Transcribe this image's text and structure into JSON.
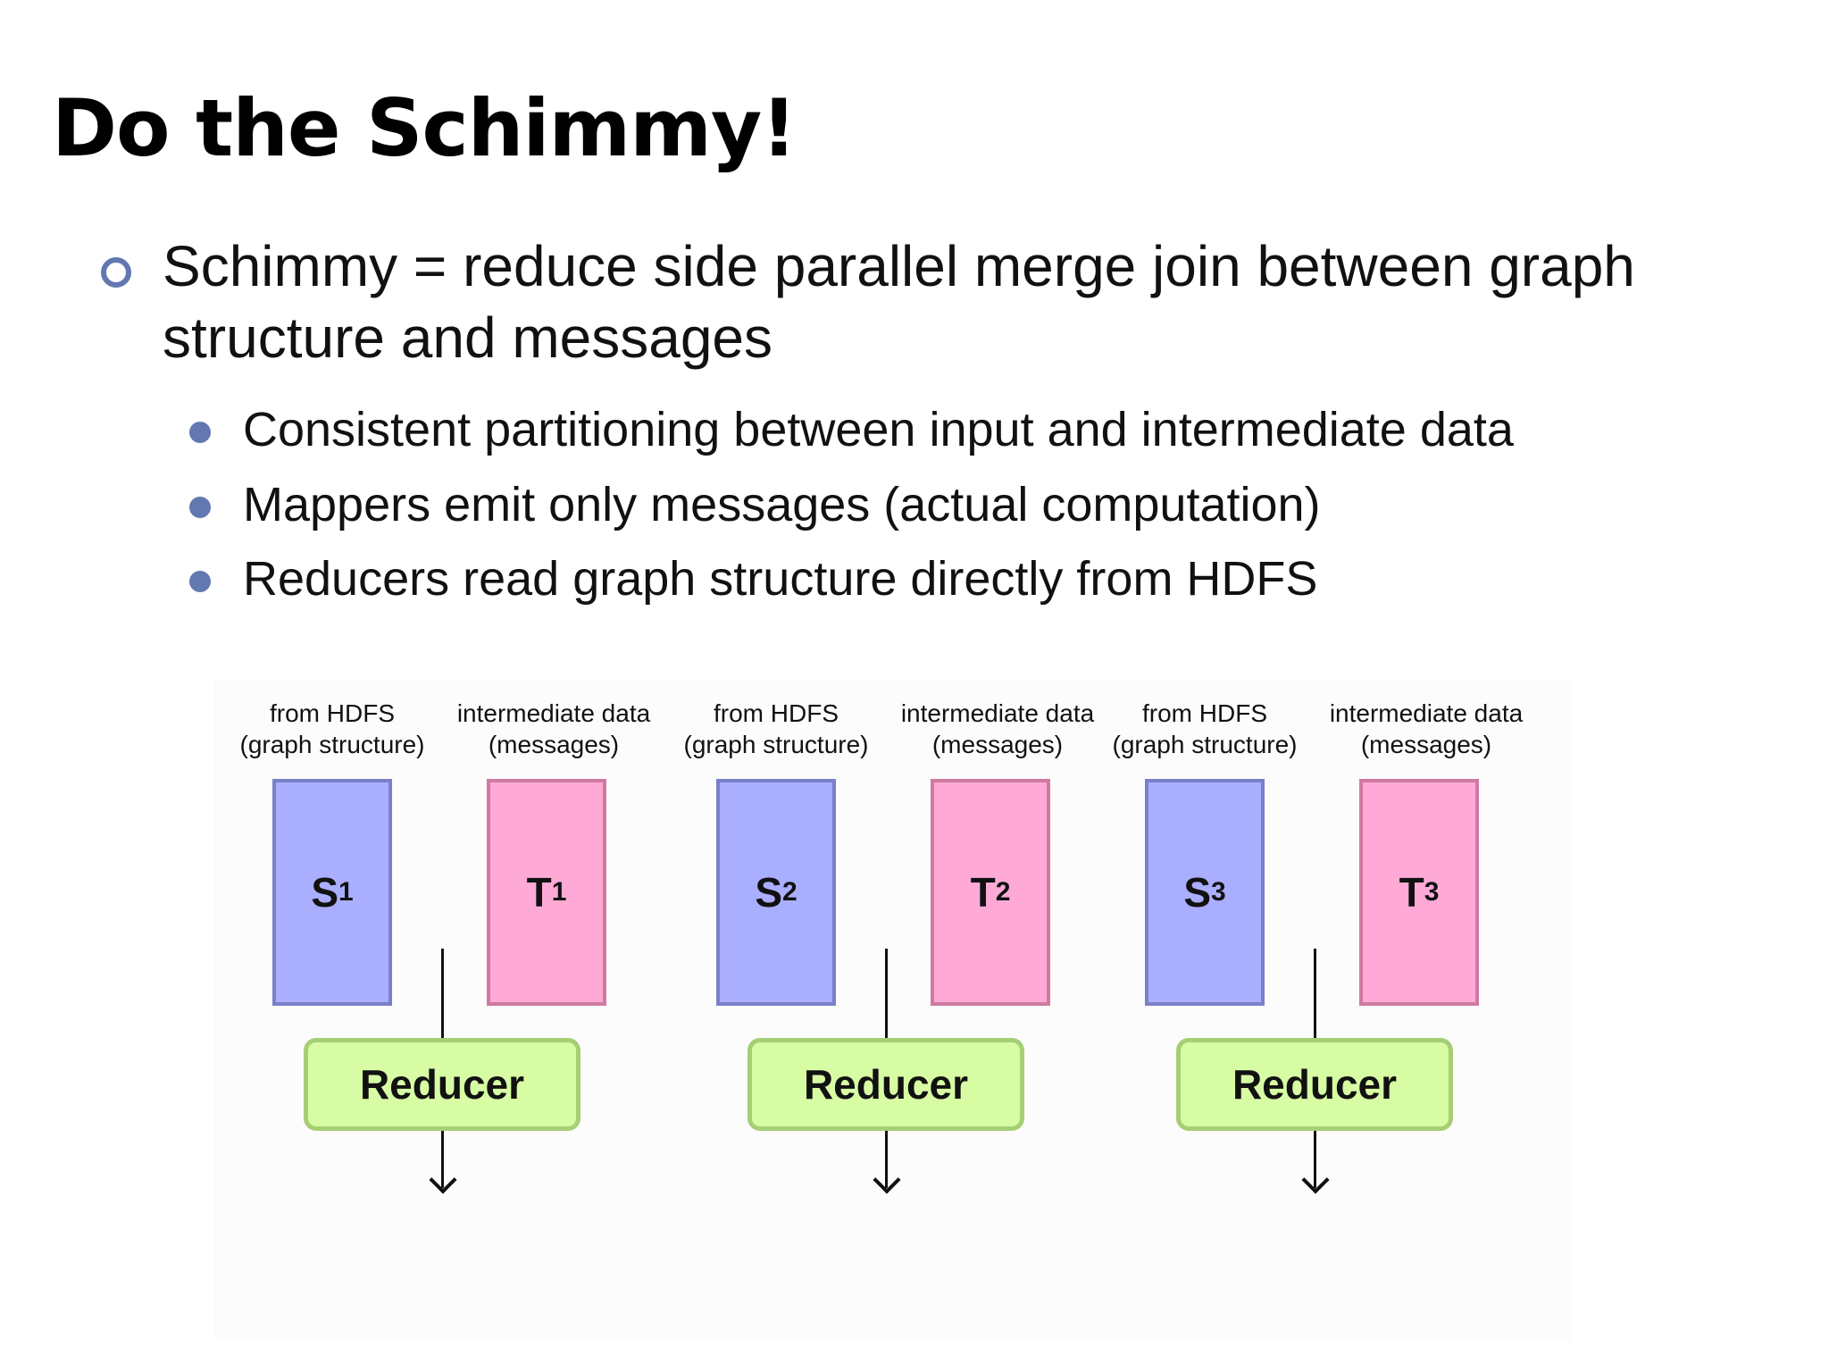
{
  "slide": {
    "title": "Do the Schimmy!",
    "main_bullet": "Schimmy = reduce side parallel merge join between graph structure and messages",
    "sub_bullets": [
      "Consistent partitioning between input and intermediate data",
      "Mappers emit only messages (actual computation)",
      "Reducers read graph structure directly from HDFS"
    ]
  },
  "diagram": {
    "partitions": [
      {
        "graph_label": [
          "from HDFS",
          "(graph structure)"
        ],
        "graph_block": {
          "letter": "S",
          "index": "1"
        },
        "message_label": [
          "intermediate data",
          "(messages)"
        ],
        "message_block": {
          "letter": "T",
          "index": "1"
        },
        "reducer_label": "Reducer"
      },
      {
        "graph_label": [
          "from HDFS",
          "(graph structure)"
        ],
        "graph_block": {
          "letter": "S",
          "index": "2"
        },
        "message_label": [
          "intermediate data",
          "(messages)"
        ],
        "message_block": {
          "letter": "T",
          "index": "2"
        },
        "reducer_label": "Reducer"
      },
      {
        "graph_label": [
          "from HDFS",
          "(graph structure)"
        ],
        "graph_block": {
          "letter": "S",
          "index": "3"
        },
        "message_label": [
          "intermediate data",
          "(messages)"
        ],
        "message_block": {
          "letter": "T",
          "index": "3"
        },
        "reducer_label": "Reducer"
      }
    ],
    "colors": {
      "graph_block": "#aaaeff",
      "message_block": "#ffaad6",
      "reducer": "#d7fca4",
      "bullet": "#6378b0"
    }
  }
}
